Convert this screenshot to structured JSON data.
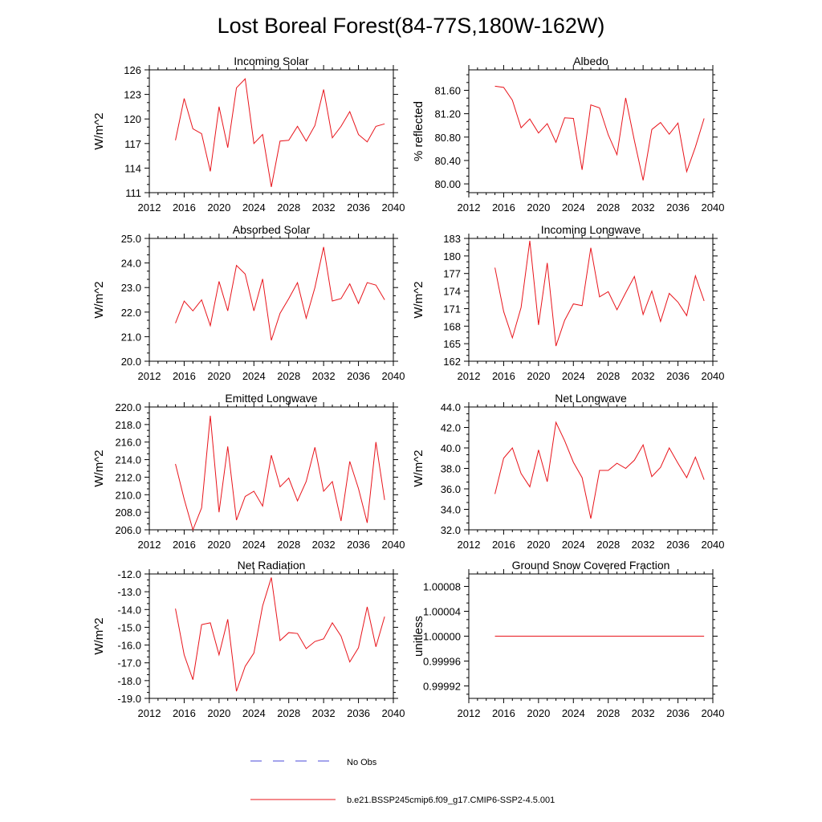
{
  "figure": {
    "title": "Lost Boreal Forest(84-77S,180W-162W)",
    "legend": [
      {
        "label": "No Obs",
        "color": "#4a4ad8",
        "dash": true
      },
      {
        "label": "b.e21.BSSP245cmip6.f09_g17.CMIP6-SSP2-4.5.001",
        "color": "#e8141b",
        "dash": false
      }
    ]
  },
  "chart_data": [
    {
      "type": "line",
      "title": "Incoming Solar",
      "ylabel": "W/m^2",
      "xlim": [
        2012,
        2040
      ],
      "ylim": [
        111,
        126
      ],
      "xticks": [
        2012,
        2016,
        2020,
        2024,
        2028,
        2032,
        2036,
        2040
      ],
      "xtick_labels": [
        "2012",
        "2016",
        "2020",
        "2024",
        "2028",
        "2032",
        "2036",
        "2040"
      ],
      "yticks": [
        111,
        114,
        117,
        120,
        123,
        126
      ],
      "ytick_labels": [
        "111",
        "114",
        "117",
        "120",
        "123",
        "126"
      ],
      "x": [
        2015,
        2016,
        2017,
        2018,
        2019,
        2020,
        2021,
        2022,
        2023,
        2024,
        2025,
        2026,
        2027,
        2028,
        2029,
        2030,
        2031,
        2032,
        2033,
        2034,
        2035,
        2036,
        2037,
        2038,
        2039
      ],
      "series": [
        {
          "color": "#e8141b",
          "values": [
            117.4,
            122.5,
            118.8,
            118.2,
            113.6,
            121.5,
            116.5,
            123.8,
            124.9,
            117.0,
            118.1,
            111.7,
            117.3,
            117.4,
            119.1,
            117.3,
            119.2,
            123.6,
            117.7,
            119.1,
            120.9,
            118.1,
            117.2,
            119.1,
            119.4
          ]
        }
      ]
    },
    {
      "type": "line",
      "title": "Albedo",
      "ylabel": "% reflected",
      "xlim": [
        2012,
        2040
      ],
      "ylim": [
        79.85,
        81.95
      ],
      "xticks": [
        2012,
        2016,
        2020,
        2024,
        2028,
        2032,
        2036,
        2040
      ],
      "xtick_labels": [
        "2012",
        "2016",
        "2020",
        "2024",
        "2028",
        "2032",
        "2036",
        "2040"
      ],
      "yticks": [
        80.0,
        80.4,
        80.8,
        81.2,
        81.6
      ],
      "ytick_labels": [
        "80.00",
        "80.40",
        "80.80",
        "81.20",
        "81.60"
      ],
      "x": [
        2015,
        2016,
        2017,
        2018,
        2019,
        2020,
        2021,
        2022,
        2023,
        2024,
        2025,
        2026,
        2027,
        2028,
        2029,
        2030,
        2031,
        2032,
        2033,
        2034,
        2035,
        2036,
        2037,
        2038,
        2039
      ],
      "series": [
        {
          "color": "#e8141b",
          "values": [
            81.67,
            81.65,
            81.43,
            80.96,
            81.11,
            80.87,
            81.03,
            80.71,
            81.13,
            81.12,
            80.24,
            81.35,
            81.3,
            80.84,
            80.5,
            81.47,
            80.74,
            80.06,
            80.93,
            81.05,
            80.85,
            81.04,
            80.21,
            80.63,
            81.12
          ]
        }
      ]
    },
    {
      "type": "line",
      "title": "Absorbed Solar",
      "ylabel": "W/m^2",
      "xlim": [
        2012,
        2040
      ],
      "ylim": [
        20.0,
        25.0
      ],
      "xticks": [
        2012,
        2016,
        2020,
        2024,
        2028,
        2032,
        2036,
        2040
      ],
      "xtick_labels": [
        "2012",
        "2016",
        "2020",
        "2024",
        "2028",
        "2032",
        "2036",
        "2040"
      ],
      "yticks": [
        20.0,
        21.0,
        22.0,
        23.0,
        24.0,
        25.0
      ],
      "ytick_labels": [
        "20.0",
        "21.0",
        "22.0",
        "23.0",
        "24.0",
        "25.0"
      ],
      "x": [
        2015,
        2016,
        2017,
        2018,
        2019,
        2020,
        2021,
        2022,
        2023,
        2024,
        2025,
        2026,
        2027,
        2028,
        2029,
        2030,
        2031,
        2032,
        2033,
        2034,
        2035,
        2036,
        2037,
        2038,
        2039
      ],
      "series": [
        {
          "color": "#e8141b",
          "values": [
            21.55,
            22.45,
            22.05,
            22.5,
            21.45,
            23.25,
            22.05,
            23.9,
            23.55,
            22.05,
            23.35,
            20.85,
            21.95,
            22.55,
            23.2,
            21.75,
            23.0,
            24.65,
            22.45,
            22.55,
            23.15,
            22.35,
            23.2,
            23.1,
            22.5
          ]
        }
      ]
    },
    {
      "type": "line",
      "title": "Incoming Longwave",
      "ylabel": "W/m^2",
      "xlim": [
        2012,
        2040
      ],
      "ylim": [
        162,
        183
      ],
      "xticks": [
        2012,
        2016,
        2020,
        2024,
        2028,
        2032,
        2036,
        2040
      ],
      "xtick_labels": [
        "2012",
        "2016",
        "2020",
        "2024",
        "2028",
        "2032",
        "2036",
        "2040"
      ],
      "yticks": [
        162,
        165,
        168,
        171,
        174,
        177,
        180,
        183
      ],
      "ytick_labels": [
        "162",
        "165",
        "168",
        "171",
        "174",
        "177",
        "180",
        "183"
      ],
      "x": [
        2015,
        2016,
        2017,
        2018,
        2019,
        2020,
        2021,
        2022,
        2023,
        2024,
        2025,
        2026,
        2027,
        2028,
        2029,
        2030,
        2031,
        2032,
        2033,
        2034,
        2035,
        2036,
        2037,
        2038,
        2039
      ],
      "series": [
        {
          "color": "#e8141b",
          "values": [
            178.0,
            170.5,
            166.0,
            171.2,
            182.6,
            168.2,
            178.8,
            164.6,
            169.0,
            171.8,
            171.5,
            181.4,
            173.0,
            173.9,
            170.8,
            173.7,
            176.5,
            170.0,
            174.0,
            168.8,
            173.6,
            172.1,
            169.8,
            176.6,
            172.3
          ]
        }
      ]
    },
    {
      "type": "line",
      "title": "Emitted Longwave",
      "ylabel": "W/m^2",
      "xlim": [
        2012,
        2040
      ],
      "ylim": [
        206.0,
        220.0
      ],
      "xticks": [
        2012,
        2016,
        2020,
        2024,
        2028,
        2032,
        2036,
        2040
      ],
      "xtick_labels": [
        "2012",
        "2016",
        "2020",
        "2024",
        "2028",
        "2032",
        "2036",
        "2040"
      ],
      "yticks": [
        206,
        208,
        210,
        212,
        214,
        216,
        218,
        220
      ],
      "ytick_labels": [
        "206.0",
        "208.0",
        "210.0",
        "212.0",
        "214.0",
        "216.0",
        "218.0",
        "220.0"
      ],
      "x": [
        2015,
        2016,
        2017,
        2018,
        2019,
        2020,
        2021,
        2022,
        2023,
        2024,
        2025,
        2026,
        2027,
        2028,
        2029,
        2030,
        2031,
        2032,
        2033,
        2034,
        2035,
        2036,
        2037,
        2038,
        2039
      ],
      "series": [
        {
          "color": "#e8141b",
          "values": [
            213.5,
            209.5,
            206.0,
            208.5,
            219.0,
            208.0,
            215.5,
            207.1,
            209.8,
            210.4,
            208.7,
            214.5,
            210.9,
            211.9,
            209.3,
            211.5,
            215.4,
            210.4,
            211.5,
            207.0,
            213.8,
            210.7,
            206.8,
            216.0,
            209.4
          ]
        }
      ]
    },
    {
      "type": "line",
      "title": "Net Longwave",
      "ylabel": "W/m^2",
      "xlim": [
        2012,
        2040
      ],
      "ylim": [
        32.0,
        44.0
      ],
      "xticks": [
        2012,
        2016,
        2020,
        2024,
        2028,
        2032,
        2036,
        2040
      ],
      "xtick_labels": [
        "2012",
        "2016",
        "2020",
        "2024",
        "2028",
        "2032",
        "2036",
        "2040"
      ],
      "yticks": [
        32,
        34,
        36,
        38,
        40,
        42,
        44
      ],
      "ytick_labels": [
        "32.0",
        "34.0",
        "36.0",
        "38.0",
        "40.0",
        "42.0",
        "44.0"
      ],
      "x": [
        2015,
        2016,
        2017,
        2018,
        2019,
        2020,
        2021,
        2022,
        2023,
        2024,
        2025,
        2026,
        2027,
        2028,
        2029,
        2030,
        2031,
        2032,
        2033,
        2034,
        2035,
        2036,
        2037,
        2038,
        2039
      ],
      "series": [
        {
          "color": "#e8141b",
          "values": [
            35.5,
            39.0,
            40.0,
            37.5,
            36.2,
            39.8,
            36.7,
            42.5,
            40.7,
            38.6,
            37.1,
            33.1,
            37.8,
            37.8,
            38.5,
            38.0,
            38.8,
            40.3,
            37.2,
            38.1,
            40.0,
            38.5,
            37.1,
            39.1,
            36.9
          ]
        }
      ]
    },
    {
      "type": "line",
      "title": "Net Radiation",
      "ylabel": "W/m^2",
      "xlim": [
        2012,
        2040
      ],
      "ylim": [
        -19.0,
        -12.0
      ],
      "xticks": [
        2012,
        2016,
        2020,
        2024,
        2028,
        2032,
        2036,
        2040
      ],
      "xtick_labels": [
        "2012",
        "2016",
        "2020",
        "2024",
        "2028",
        "2032",
        "2036",
        "2040"
      ],
      "yticks": [
        -19,
        -18,
        -17,
        -16,
        -15,
        -14,
        -13,
        -12
      ],
      "ytick_labels": [
        "-19.0",
        "-18.0",
        "-17.0",
        "-16.0",
        "-15.0",
        "-14.0",
        "-13.0",
        "-12.0"
      ],
      "x": [
        2015,
        2016,
        2017,
        2018,
        2019,
        2020,
        2021,
        2022,
        2023,
        2024,
        2025,
        2026,
        2027,
        2028,
        2029,
        2030,
        2031,
        2032,
        2033,
        2034,
        2035,
        2036,
        2037,
        2038,
        2039
      ],
      "series": [
        {
          "color": "#e8141b",
          "values": [
            -13.95,
            -16.55,
            -17.95,
            -14.85,
            -14.75,
            -16.55,
            -14.55,
            -18.6,
            -17.2,
            -16.45,
            -13.8,
            -12.2,
            -15.75,
            -15.3,
            -15.35,
            -16.2,
            -15.8,
            -15.65,
            -14.75,
            -15.5,
            -16.95,
            -16.15,
            -13.85,
            -16.1,
            -14.4
          ]
        }
      ]
    },
    {
      "type": "line",
      "title": "Ground Snow Covered Fraction",
      "ylabel": "unitless",
      "xlim": [
        2012,
        2040
      ],
      "ylim": [
        0.9999,
        1.0001
      ],
      "xticks": [
        2012,
        2016,
        2020,
        2024,
        2028,
        2032,
        2036,
        2040
      ],
      "xtick_labels": [
        "2012",
        "2016",
        "2020",
        "2024",
        "2028",
        "2032",
        "2036",
        "2040"
      ],
      "yticks": [
        0.99992,
        0.99996,
        1.0,
        1.00004,
        1.00008
      ],
      "ytick_labels": [
        "0.99992",
        "0.99996",
        "1.00000",
        "1.00004",
        "1.00008"
      ],
      "x": [
        2015,
        2016,
        2017,
        2018,
        2019,
        2020,
        2021,
        2022,
        2023,
        2024,
        2025,
        2026,
        2027,
        2028,
        2029,
        2030,
        2031,
        2032,
        2033,
        2034,
        2035,
        2036,
        2037,
        2038,
        2039
      ],
      "series": [
        {
          "color": "#e8141b",
          "values": [
            1.0,
            1.0,
            1.0,
            1.0,
            1.0,
            1.0,
            1.0,
            1.0,
            1.0,
            1.0,
            1.0,
            1.0,
            1.0,
            1.0,
            1.0,
            1.0,
            1.0,
            1.0,
            1.0,
            1.0,
            1.0,
            1.0,
            1.0,
            1.0,
            1.0
          ]
        }
      ]
    }
  ]
}
